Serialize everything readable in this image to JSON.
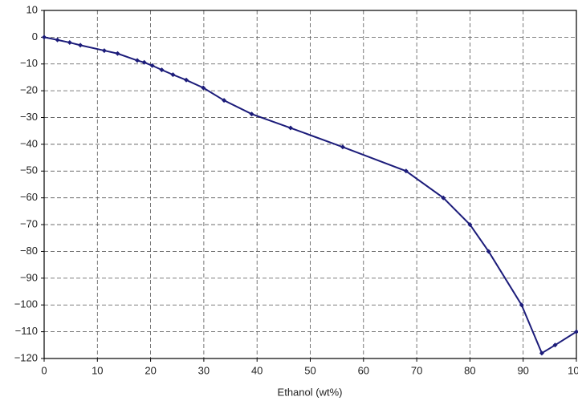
{
  "chart_data": {
    "type": "line",
    "x_label": "Ethanol (wt%)",
    "x": [
      0,
      2.5,
      4.8,
      6.8,
      11.3,
      13.8,
      17.5,
      18.8,
      20.3,
      22.1,
      24.2,
      26.7,
      29.9,
      33.8,
      39,
      46.3,
      56.1,
      68,
      75,
      80,
      83.5,
      89.7,
      93.5,
      96,
      100
    ],
    "series": [
      {
        "color": "#1c1c7a",
        "values": [
          0,
          -1,
          -2,
          -3,
          -5,
          -6.1,
          -8.7,
          -9.4,
          -10.6,
          -12.2,
          -14,
          -16,
          -18.9,
          -23.6,
          -28.7,
          -33.9,
          -41,
          -50,
          -60,
          -70,
          -80,
          -100,
          -118,
          -115,
          -110
        ]
      }
    ],
    "xlim": [
      0,
      100
    ],
    "xticks": [
      0,
      10,
      20,
      30,
      40,
      50,
      60,
      70,
      80,
      90,
      100
    ],
    "ylim": [
      -120,
      10
    ],
    "yticks": [
      {
        "value": -120,
        "label": "−120"
      },
      {
        "value": -110,
        "label": "−110"
      },
      {
        "value": -100,
        "label": "−100"
      },
      {
        "value": -90,
        "label": "−90"
      },
      {
        "value": -80,
        "label": "−80"
      },
      {
        "value": -70,
        "label": "−70"
      },
      {
        "value": -60,
        "label": "−60"
      },
      {
        "value": -50,
        "label": "−50"
      },
      {
        "value": -40,
        "label": "−40"
      },
      {
        "value": -30,
        "label": "−30"
      },
      {
        "value": -20,
        "label": "−20"
      },
      {
        "value": -10,
        "label": "−10"
      },
      0,
      10
    ],
    "grid": true
  }
}
